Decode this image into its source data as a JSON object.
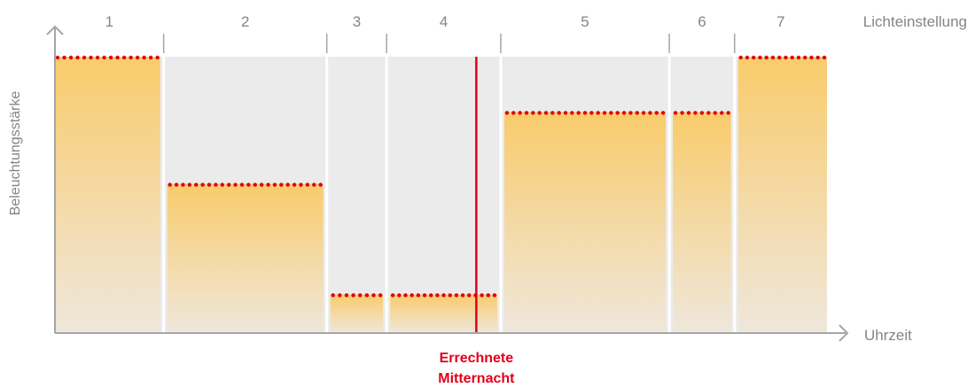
{
  "chart_data": {
    "type": "bar",
    "series_label": "Lichteinstellung",
    "xlabel": "Uhrzeit",
    "ylabel": "Beleuchtungsstärke",
    "segments": [
      {
        "label": "1",
        "width": 2.0,
        "level": 1.0
      },
      {
        "label": "2",
        "width": 3.0,
        "level": 0.54
      },
      {
        "label": "3",
        "width": 1.1,
        "level": 0.14
      },
      {
        "label": "4",
        "width": 2.1,
        "level": 0.14
      },
      {
        "label": "5",
        "width": 3.1,
        "level": 0.8
      },
      {
        "label": "6",
        "width": 1.2,
        "level": 0.8
      },
      {
        "label": "7",
        "width": 1.7,
        "level": 1.0
      }
    ],
    "ylim": [
      0,
      1
    ],
    "midnight": {
      "position": 7.75,
      "label_lines": [
        "Errechnete",
        "Mitternacht"
      ],
      "color": "#e2001a"
    },
    "colors": {
      "bar_top": "#f9cb6b",
      "bar_bottom": "#efe7dc",
      "background": "#ebebeb",
      "dots": "#d9001b",
      "axis": "#a6a6a6",
      "text": "#858585"
    }
  }
}
